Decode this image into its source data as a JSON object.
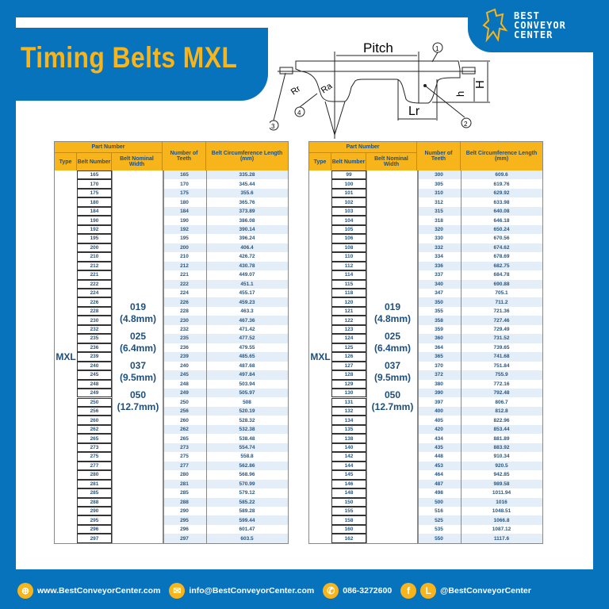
{
  "header": {
    "title": "Timing Belts MXL",
    "logo": "BEST CONVEYOR CENTER"
  },
  "diagram": {
    "labels": {
      "pitch": "Pitch",
      "rr": "Rr",
      "ra": "Ra",
      "lr": "Lr",
      "h_small": "h",
      "h_big": "H",
      "n1": "1",
      "n2": "2",
      "n3": "3",
      "n4": "4"
    }
  },
  "table_headers": {
    "part_number": "Part Number",
    "type": "Type",
    "belt_number": "Belt Number",
    "belt_width": "Belt Nominal Width",
    "teeth": "Number of Teeth",
    "length": "Belt Circumference Length (mm)"
  },
  "type": "MXL",
  "widths": [
    "019",
    "(4.8mm)",
    "025",
    "(6.4mm)",
    "037",
    "(9.5mm)",
    "050",
    "(12.7mm)"
  ],
  "tables": [
    {
      "rows": [
        [
          "165",
          "165",
          "335.28"
        ],
        [
          "170",
          "170",
          "345.44"
        ],
        [
          "175",
          "175",
          "355.6"
        ],
        [
          "180",
          "180",
          "365.76"
        ],
        [
          "184",
          "184",
          "373.89"
        ],
        [
          "190",
          "190",
          "386.08"
        ],
        [
          "192",
          "192",
          "390.14"
        ],
        [
          "195",
          "195",
          "396.24"
        ],
        [
          "200",
          "200",
          "406.4"
        ],
        [
          "210",
          "210",
          "426.72"
        ],
        [
          "212",
          "212",
          "430.78"
        ],
        [
          "221",
          "221",
          "449.07"
        ],
        [
          "222",
          "222",
          "451.1"
        ],
        [
          "224",
          "224",
          "455.17"
        ],
        [
          "226",
          "226",
          "459.23"
        ],
        [
          "228",
          "228",
          "463.3"
        ],
        [
          "230",
          "230",
          "467.36"
        ],
        [
          "232",
          "232",
          "471.42"
        ],
        [
          "235",
          "235",
          "477.52"
        ],
        [
          "236",
          "236",
          "479.55"
        ],
        [
          "239",
          "239",
          "485.65"
        ],
        [
          "240",
          "240",
          "487.68"
        ],
        [
          "245",
          "245",
          "497.84"
        ],
        [
          "248",
          "248",
          "503.94"
        ],
        [
          "249",
          "249",
          "505.97"
        ],
        [
          "250",
          "250",
          "508"
        ],
        [
          "256",
          "256",
          "520.19"
        ],
        [
          "260",
          "260",
          "528.32"
        ],
        [
          "262",
          "262",
          "532.38"
        ],
        [
          "265",
          "265",
          "538.48"
        ],
        [
          "273",
          "273",
          "554.74"
        ],
        [
          "275",
          "275",
          "558.8"
        ],
        [
          "277",
          "277",
          "562.86"
        ],
        [
          "280",
          "280",
          "568.96"
        ],
        [
          "281",
          "281",
          "570.99"
        ],
        [
          "285",
          "285",
          "579.12"
        ],
        [
          "288",
          "288",
          "585.22"
        ],
        [
          "290",
          "290",
          "589.28"
        ],
        [
          "295",
          "295",
          "599.44"
        ],
        [
          "296",
          "296",
          "601.47"
        ],
        [
          "297",
          "297",
          "603.5"
        ]
      ]
    },
    {
      "rows": [
        [
          "99",
          "300",
          "609.6"
        ],
        [
          "100",
          "305",
          "619.76"
        ],
        [
          "101",
          "310",
          "629.92"
        ],
        [
          "102",
          "312",
          "633.98"
        ],
        [
          "103",
          "315",
          "640.08"
        ],
        [
          "104",
          "318",
          "646.18"
        ],
        [
          "105",
          "320",
          "650.24"
        ],
        [
          "106",
          "330",
          "670.56"
        ],
        [
          "108",
          "332",
          "674.62"
        ],
        [
          "110",
          "334",
          "678.69"
        ],
        [
          "112",
          "336",
          "682.75"
        ],
        [
          "114",
          "337",
          "684.78"
        ],
        [
          "115",
          "340",
          "690.88"
        ],
        [
          "118",
          "347",
          "705.1"
        ],
        [
          "120",
          "350",
          "711.2"
        ],
        [
          "121",
          "355",
          "721.36"
        ],
        [
          "122",
          "358",
          "727.46"
        ],
        [
          "123",
          "359",
          "729.49"
        ],
        [
          "124",
          "360",
          "731.52"
        ],
        [
          "125",
          "364",
          "739.65"
        ],
        [
          "126",
          "365",
          "741.68"
        ],
        [
          "127",
          "370",
          "751.84"
        ],
        [
          "128",
          "372",
          "755.9"
        ],
        [
          "129",
          "380",
          "772.16"
        ],
        [
          "130",
          "390",
          "792.48"
        ],
        [
          "131",
          "397",
          "806.7"
        ],
        [
          "132",
          "400",
          "812.8"
        ],
        [
          "134",
          "405",
          "822.96"
        ],
        [
          "135",
          "420",
          "853.44"
        ],
        [
          "138",
          "434",
          "881.89"
        ],
        [
          "140",
          "435",
          "883.92"
        ],
        [
          "142",
          "448",
          "910.34"
        ],
        [
          "144",
          "453",
          "920.5"
        ],
        [
          "145",
          "464",
          "942.85"
        ],
        [
          "146",
          "487",
          "989.58"
        ],
        [
          "148",
          "498",
          "1011.94"
        ],
        [
          "150",
          "500",
          "1016"
        ],
        [
          "155",
          "516",
          "1048.51"
        ],
        [
          "158",
          "525",
          "1066.8"
        ],
        [
          "160",
          "535",
          "1087.12"
        ],
        [
          "162",
          "550",
          "1117.6"
        ]
      ]
    }
  ],
  "footer": {
    "website": "www.BestConveyorCenter.com",
    "email": "info@BestConveyorCenter.com",
    "phone": "086-3272600",
    "social": "@BestConveyorCenter",
    "icons": [
      "globe-icon",
      "mail-icon",
      "phone-icon",
      "facebook-icon",
      "line-icon"
    ]
  },
  "colors": {
    "brand_blue": "#0873bd",
    "accent_yellow": "#f8b51b",
    "text_blue": "#1d4f7e",
    "stripe": "#e3eef8"
  }
}
